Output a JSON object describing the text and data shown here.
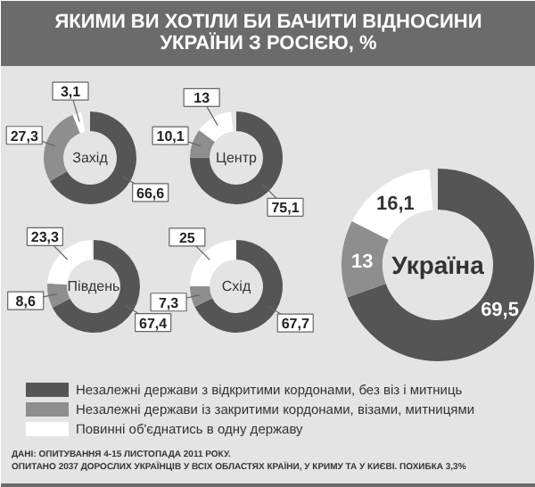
{
  "chart_data": {
    "type": "donut",
    "title": "ЯКИМИ ВИ ХОТІЛИ БИ БАЧИТИ ВІДНОСИНИ\nУКРАЇНИ З РОСІЄЮ, %",
    "categories": [
      "Незалежні держави з відкритими кордонами, без віз і митниць",
      "Незалежні держави із закритими кордонами, візами, митницями",
      "Повинні об'єднатись в одну державу"
    ],
    "colors": [
      "#555555",
      "#8e8e8e",
      "#ffffff"
    ],
    "series": [
      {
        "name": "Захід",
        "values": [
          66.6,
          27.3,
          3.1
        ],
        "value_labels": [
          "66,6",
          "27,3",
          "3,1"
        ]
      },
      {
        "name": "Центр",
        "values": [
          75.1,
          10.1,
          13
        ],
        "value_labels": [
          "75,1",
          "10,1",
          "13"
        ]
      },
      {
        "name": "Південь",
        "values": [
          67.4,
          8.6,
          23.3
        ],
        "value_labels": [
          "67,4",
          "8,6",
          "23,3"
        ]
      },
      {
        "name": "Схід",
        "values": [
          67.7,
          7.3,
          25
        ],
        "value_labels": [
          "67,7",
          "7,3",
          "25"
        ]
      },
      {
        "name": "Україна",
        "values": [
          69.5,
          13,
          16.1
        ],
        "value_labels": [
          "69,5",
          "13",
          "16,1"
        ]
      }
    ],
    "legend": "bottom",
    "annotations": [
      "ДАНІ: ОПИТУВАННЯ 4-15 ЛИСТОПАДА 2011 РОКУ.\nОПИТАНО 2037 ДОРОСЛИХ УКРАЇНЦІВ У ВСІХ ОБЛАСТЯХ КРАЇНИ, У КРИМУ ТА У КИЄВІ. ПОХИБКА 3,3%"
    ]
  }
}
